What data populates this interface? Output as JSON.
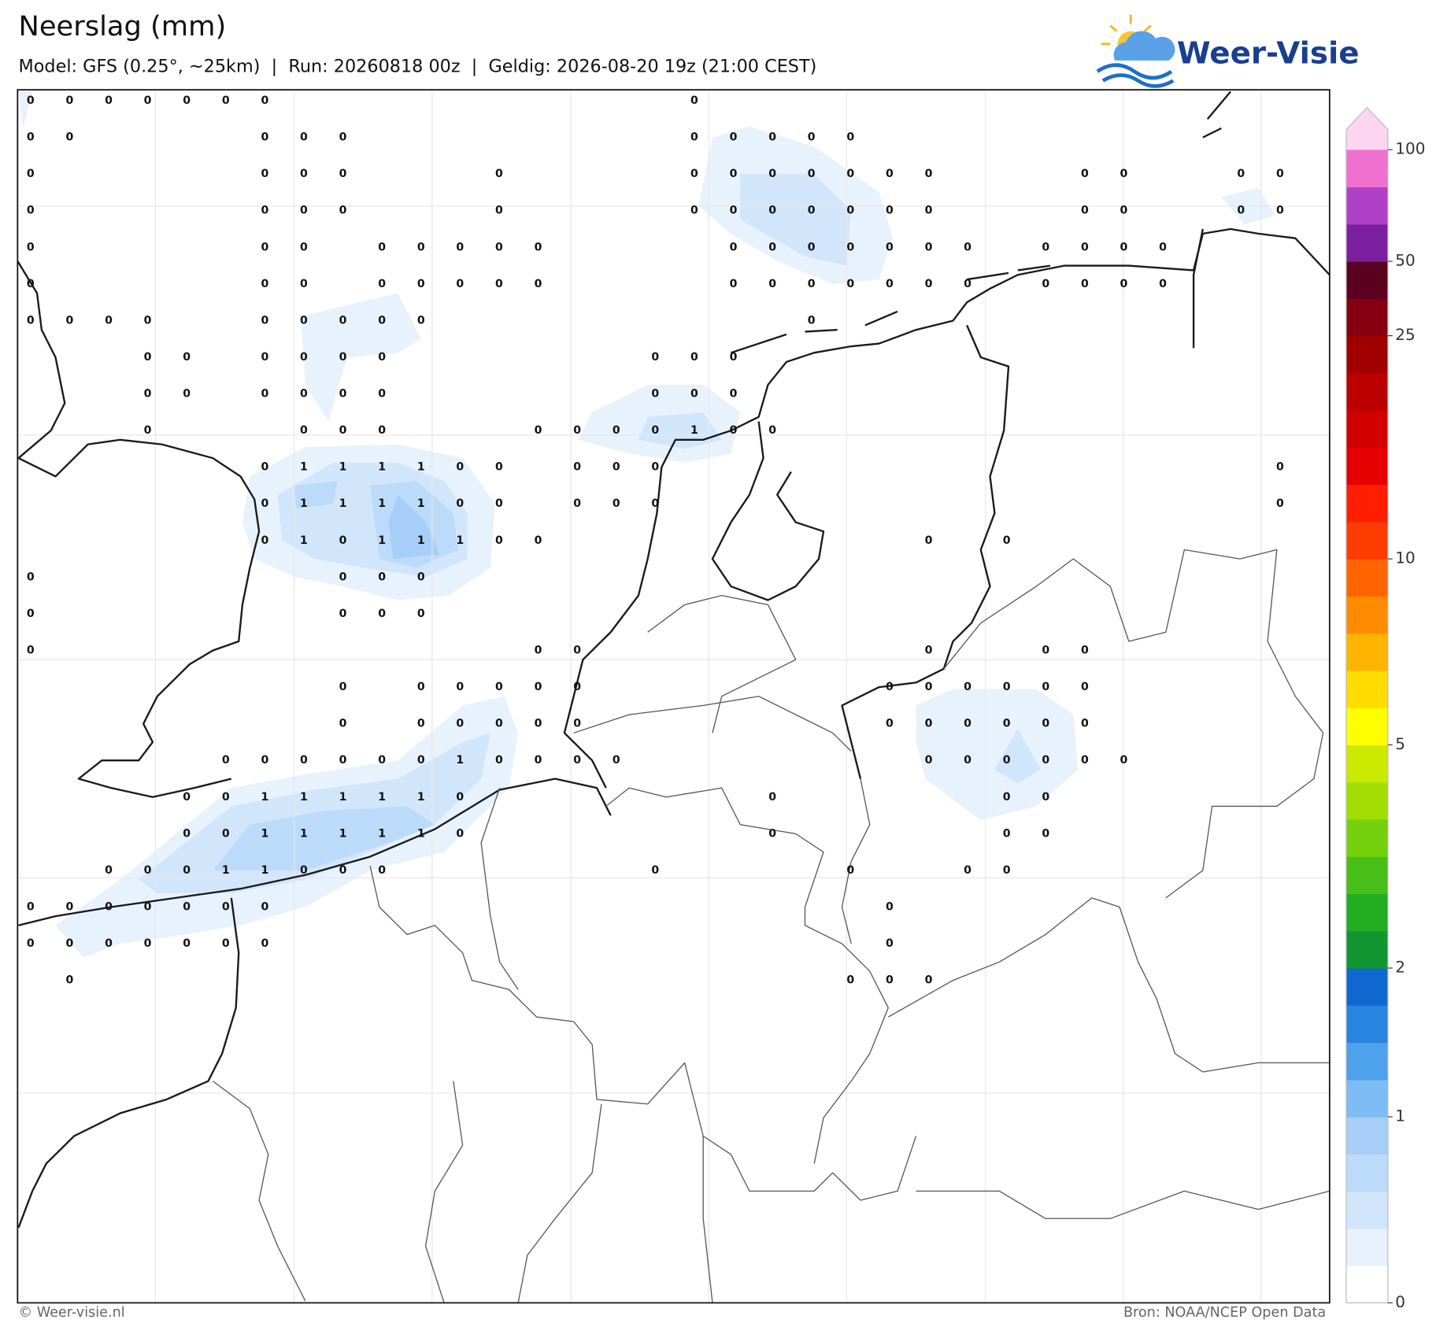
{
  "header": {
    "title": "Neerslag (mm)",
    "subtitle": "Model: GFS (0.25°, ~25km)  |  Run: 20260818 00z  |  Geldig: 2026-08-20 19z (21:00 CEST)",
    "logo": "Weer-Visie"
  },
  "footer": {
    "left": "© Weer-visie.nl",
    "right": "Bron: NOAA/NCEP Open Data"
  },
  "colorbar": {
    "levels": [
      0,
      0.1,
      0.2,
      0.3,
      0.5,
      1,
      1.2,
      1.4,
      1.7,
      2,
      2.5,
      3,
      3.5,
      4,
      4.5,
      5,
      6,
      7,
      8,
      9,
      10,
      12,
      14,
      16,
      20,
      22,
      25,
      35,
      50,
      60,
      75,
      100
    ],
    "colors": [
      "#ffffff",
      "#e8f2fd",
      "#d2e6fb",
      "#bcdafa",
      "#a6cef8",
      "#7dbcf4",
      "#4ea2ec",
      "#2784e0",
      "#0f68d0",
      "#129632",
      "#22ad22",
      "#48bf18",
      "#74d00a",
      "#a2dd00",
      "#cce900",
      "#ffff00",
      "#ffdc00",
      "#ffb400",
      "#ff8c00",
      "#ff6400",
      "#ff3c00",
      "#ff1e00",
      "#e60000",
      "#d20000",
      "#bc0000",
      "#a00000",
      "#850010",
      "#5c0020",
      "#7a1fa0",
      "#b040c8",
      "#f070d0"
    ],
    "extend_color": "#fcd5f0",
    "ticks": [
      0,
      1,
      2,
      5,
      10,
      25,
      50,
      100
    ]
  },
  "grid_values": [
    [
      0,
      0,
      0,
      0,
      0,
      0,
      0,
      null,
      null,
      null,
      null,
      null,
      null,
      null,
      null,
      null,
      null,
      0,
      null,
      null,
      null,
      null,
      null,
      null,
      null,
      null,
      null,
      null,
      null,
      null,
      null,
      null,
      null
    ],
    [
      0,
      0,
      null,
      null,
      null,
      null,
      0,
      0,
      0,
      null,
      null,
      null,
      null,
      null,
      null,
      null,
      null,
      0,
      0,
      0,
      0,
      0,
      null,
      null,
      null,
      null,
      null,
      null,
      null,
      null,
      null,
      null,
      null
    ],
    [
      0,
      null,
      null,
      null,
      null,
      null,
      0,
      0,
      0,
      null,
      null,
      null,
      0,
      null,
      null,
      null,
      null,
      0,
      0,
      0,
      0,
      0,
      0,
      0,
      null,
      null,
      null,
      0,
      0,
      null,
      null,
      0,
      0
    ],
    [
      0,
      null,
      null,
      null,
      null,
      null,
      0,
      0,
      0,
      null,
      null,
      null,
      0,
      null,
      null,
      null,
      null,
      0,
      0,
      0,
      0,
      0,
      0,
      0,
      null,
      null,
      null,
      0,
      0,
      null,
      null,
      0,
      0
    ],
    [
      0,
      null,
      null,
      null,
      null,
      null,
      0,
      0,
      null,
      0,
      0,
      0,
      0,
      0,
      null,
      null,
      null,
      null,
      0,
      0,
      0,
      0,
      0,
      0,
      0,
      null,
      0,
      0,
      0,
      0,
      null,
      null,
      null
    ],
    [
      0,
      null,
      null,
      null,
      null,
      null,
      0,
      0,
      null,
      0,
      0,
      0,
      0,
      0,
      null,
      null,
      null,
      null,
      0,
      0,
      0,
      0,
      0,
      0,
      0,
      null,
      0,
      0,
      0,
      0,
      null,
      null,
      null
    ],
    [
      0,
      0,
      0,
      0,
      null,
      null,
      0,
      0,
      0,
      0,
      0,
      null,
      null,
      null,
      null,
      null,
      null,
      null,
      null,
      null,
      0,
      null,
      null,
      null,
      null,
      null,
      null,
      null,
      null,
      null,
      null,
      null,
      null
    ],
    [
      null,
      null,
      null,
      0,
      0,
      null,
      0,
      0,
      0,
      0,
      null,
      null,
      null,
      null,
      null,
      null,
      0,
      0,
      0,
      null,
      null,
      null,
      null,
      null,
      null,
      null,
      null,
      null,
      null,
      null,
      null,
      null,
      null
    ],
    [
      null,
      null,
      null,
      0,
      0,
      null,
      0,
      0,
      0,
      0,
      null,
      null,
      null,
      null,
      null,
      null,
      0,
      0,
      0,
      null,
      null,
      null,
      null,
      null,
      null,
      null,
      null,
      null,
      null,
      null,
      null,
      null,
      null
    ],
    [
      null,
      null,
      null,
      0,
      null,
      null,
      null,
      0,
      0,
      0,
      null,
      null,
      null,
      0,
      0,
      0,
      0,
      1,
      0,
      0,
      null,
      null,
      null,
      null,
      null,
      null,
      null,
      null,
      null,
      null,
      null,
      null,
      null
    ],
    [
      null,
      null,
      null,
      null,
      null,
      null,
      0,
      1,
      1,
      1,
      1,
      0,
      0,
      null,
      0,
      0,
      0,
      null,
      null,
      null,
      null,
      null,
      null,
      null,
      null,
      null,
      null,
      null,
      null,
      null,
      null,
      null,
      0
    ],
    [
      null,
      null,
      null,
      null,
      null,
      null,
      0,
      1,
      1,
      1,
      1,
      0,
      0,
      null,
      0,
      0,
      0,
      null,
      null,
      null,
      null,
      null,
      null,
      null,
      null,
      null,
      null,
      null,
      null,
      null,
      null,
      null,
      0
    ],
    [
      null,
      null,
      null,
      null,
      null,
      null,
      0,
      1,
      0,
      1,
      1,
      1,
      0,
      0,
      null,
      null,
      null,
      null,
      null,
      null,
      null,
      null,
      null,
      0,
      null,
      0,
      null,
      null,
      null,
      null,
      null,
      null,
      null
    ],
    [
      0,
      null,
      null,
      null,
      null,
      null,
      null,
      null,
      0,
      0,
      0,
      null,
      null,
      null,
      null,
      null,
      null,
      null,
      null,
      null,
      null,
      null,
      null,
      null,
      null,
      null,
      null,
      null,
      null,
      null,
      null,
      null,
      null
    ],
    [
      0,
      null,
      null,
      null,
      null,
      null,
      null,
      null,
      0,
      0,
      0,
      null,
      null,
      null,
      null,
      null,
      null,
      null,
      null,
      null,
      null,
      null,
      null,
      null,
      null,
      null,
      null,
      null,
      null,
      null,
      null,
      null,
      null
    ],
    [
      0,
      null,
      null,
      null,
      null,
      null,
      null,
      null,
      null,
      null,
      null,
      null,
      null,
      0,
      0,
      null,
      null,
      null,
      null,
      null,
      null,
      null,
      null,
      0,
      null,
      null,
      0,
      0,
      null,
      null,
      null,
      null,
      null
    ],
    [
      null,
      null,
      null,
      null,
      null,
      null,
      null,
      null,
      0,
      null,
      0,
      0,
      0,
      0,
      0,
      null,
      null,
      null,
      null,
      null,
      null,
      null,
      0,
      0,
      0,
      0,
      0,
      0,
      null,
      null,
      null,
      null,
      null
    ],
    [
      null,
      null,
      null,
      null,
      null,
      null,
      null,
      null,
      0,
      null,
      0,
      0,
      0,
      0,
      0,
      null,
      null,
      null,
      null,
      null,
      null,
      null,
      0,
      0,
      0,
      0,
      0,
      0,
      null,
      null,
      null,
      null,
      null
    ],
    [
      null,
      null,
      null,
      null,
      null,
      0,
      0,
      0,
      0,
      0,
      0,
      1,
      0,
      0,
      0,
      0,
      null,
      null,
      null,
      null,
      null,
      null,
      null,
      0,
      0,
      0,
      0,
      0,
      0,
      null,
      null,
      null,
      null
    ],
    [
      null,
      null,
      null,
      null,
      0,
      0,
      1,
      1,
      1,
      1,
      1,
      0,
      null,
      null,
      null,
      null,
      null,
      null,
      null,
      0,
      null,
      null,
      null,
      null,
      null,
      0,
      0,
      null,
      null,
      null,
      null,
      null,
      null
    ],
    [
      null,
      null,
      null,
      null,
      0,
      0,
      1,
      1,
      1,
      1,
      1,
      0,
      null,
      null,
      null,
      null,
      null,
      null,
      null,
      0,
      null,
      null,
      null,
      null,
      null,
      0,
      0,
      null,
      null,
      null,
      null,
      null,
      null
    ],
    [
      null,
      null,
      0,
      0,
      0,
      1,
      1,
      0,
      0,
      0,
      null,
      null,
      null,
      null,
      null,
      null,
      0,
      null,
      null,
      null,
      null,
      0,
      null,
      null,
      0,
      0,
      null,
      null,
      null,
      null,
      null,
      null,
      null
    ],
    [
      0,
      0,
      0,
      0,
      0,
      0,
      0,
      null,
      null,
      null,
      null,
      null,
      null,
      null,
      null,
      null,
      null,
      null,
      null,
      null,
      null,
      null,
      0,
      null,
      null,
      null,
      null,
      null,
      null,
      null,
      null,
      null,
      null
    ],
    [
      0,
      0,
      0,
      0,
      0,
      0,
      0,
      null,
      null,
      null,
      null,
      null,
      null,
      null,
      null,
      null,
      null,
      null,
      null,
      null,
      null,
      null,
      0,
      null,
      null,
      null,
      null,
      null,
      null,
      null,
      null,
      null,
      null
    ],
    [
      null,
      0,
      null,
      null,
      null,
      null,
      null,
      null,
      null,
      null,
      null,
      null,
      null,
      null,
      null,
      null,
      null,
      null,
      null,
      null,
      null,
      0,
      0,
      0,
      null,
      null,
      null,
      null,
      null,
      null,
      null,
      null,
      null
    ]
  ]
}
